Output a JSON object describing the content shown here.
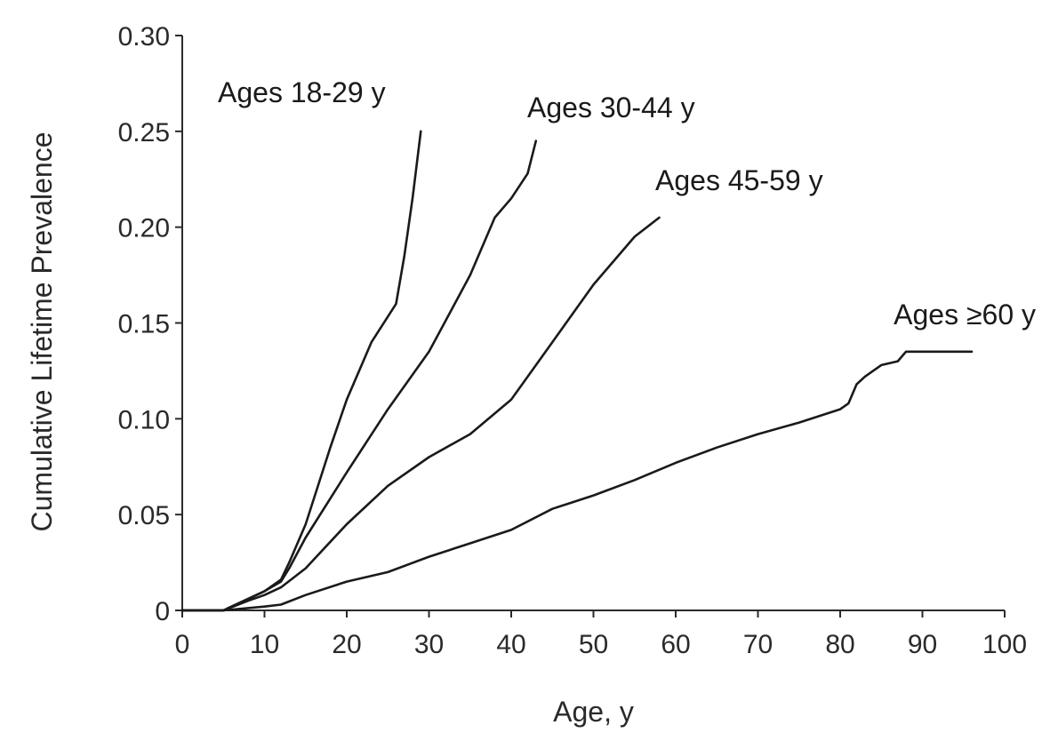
{
  "chart_data": {
    "type": "line",
    "title": "",
    "xlabel": "Age, y",
    "ylabel": "Cumulative Lifetime Prevalence",
    "xlim": [
      0,
      100
    ],
    "ylim": [
      0,
      0.3
    ],
    "xticks": [
      {
        "value": 0,
        "label": "0"
      },
      {
        "value": 10,
        "label": "10"
      },
      {
        "value": 20,
        "label": "20"
      },
      {
        "value": 30,
        "label": "30"
      },
      {
        "value": 40,
        "label": "40"
      },
      {
        "value": 50,
        "label": "50"
      },
      {
        "value": 60,
        "label": "60"
      },
      {
        "value": 70,
        "label": "70"
      },
      {
        "value": 80,
        "label": "80"
      },
      {
        "value": 90,
        "label": "90"
      },
      {
        "value": 100,
        "label": "100"
      }
    ],
    "yticks": [
      {
        "value": 0,
        "label": "0"
      },
      {
        "value": 0.05,
        "label": "0.05"
      },
      {
        "value": 0.1,
        "label": "0.10"
      },
      {
        "value": 0.15,
        "label": "0.15"
      },
      {
        "value": 0.2,
        "label": "0.20"
      },
      {
        "value": 0.25,
        "label": "0.25"
      },
      {
        "value": 0.3,
        "label": "0.30"
      }
    ],
    "grid": false,
    "legend": "none",
    "series": [
      {
        "name": "Ages 18-29 y",
        "x": [
          0,
          5,
          8,
          10,
          12,
          13,
          15,
          18,
          20,
          23,
          26,
          27,
          28,
          29
        ],
        "y": [
          0,
          0,
          0.006,
          0.01,
          0.016,
          0.025,
          0.045,
          0.085,
          0.11,
          0.14,
          0.16,
          0.185,
          0.215,
          0.25
        ]
      },
      {
        "name": "Ages 30-44 y",
        "x": [
          0,
          5,
          8,
          10,
          12,
          13,
          15,
          20,
          25,
          30,
          35,
          38,
          40,
          42,
          43
        ],
        "y": [
          0,
          0,
          0.006,
          0.01,
          0.015,
          0.022,
          0.038,
          0.072,
          0.105,
          0.135,
          0.175,
          0.205,
          0.215,
          0.228,
          0.245
        ]
      },
      {
        "name": "Ages 45-59 y",
        "x": [
          0,
          5,
          8,
          10,
          12,
          15,
          20,
          25,
          30,
          35,
          40,
          45,
          50,
          55,
          58
        ],
        "y": [
          0,
          0,
          0.005,
          0.008,
          0.012,
          0.022,
          0.045,
          0.065,
          0.08,
          0.092,
          0.11,
          0.14,
          0.17,
          0.195,
          0.205
        ]
      },
      {
        "name": "Ages ≥60 y",
        "x": [
          0,
          5,
          10,
          12,
          15,
          20,
          25,
          30,
          35,
          40,
          45,
          50,
          55,
          60,
          65,
          70,
          75,
          80,
          81,
          82,
          83,
          84,
          85,
          87,
          88,
          96
        ],
        "y": [
          0,
          0,
          0.002,
          0.003,
          0.008,
          0.015,
          0.02,
          0.028,
          0.035,
          0.042,
          0.053,
          0.06,
          0.068,
          0.077,
          0.085,
          0.092,
          0.098,
          0.105,
          0.108,
          0.118,
          0.122,
          0.125,
          0.128,
          0.13,
          0.135,
          0.135
        ]
      }
    ]
  }
}
